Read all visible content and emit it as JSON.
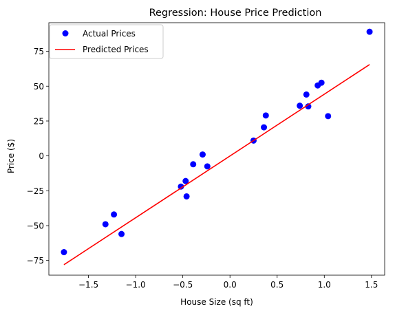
{
  "chart_data": {
    "type": "scatter",
    "title": "Regression: House Price Prediction",
    "xlabel": "House Size (sq ft)",
    "ylabel": "Price ($)",
    "xlim": [
      -1.92,
      1.64
    ],
    "ylim": [
      -85.5,
      95.5
    ],
    "xticks": [
      -1.5,
      -1.0,
      -0.5,
      0.0,
      0.5,
      1.0,
      1.5
    ],
    "xtick_labels": [
      "−1.5",
      "−1.0",
      "−0.5",
      "0.0",
      "0.5",
      "1.0",
      "1.5"
    ],
    "yticks": [
      -75,
      -50,
      -25,
      0,
      25,
      50,
      75
    ],
    "ytick_labels": [
      "−75",
      "−50",
      "−25",
      "0",
      "25",
      "50",
      "75"
    ],
    "grid": false,
    "legend_position": "top-left",
    "series": [
      {
        "name": "Actual Prices",
        "kind": "scatter",
        "color": "#0000ff",
        "points": [
          {
            "x": -1.76,
            "y": -69
          },
          {
            "x": -1.32,
            "y": -49
          },
          {
            "x": -1.23,
            "y": -42
          },
          {
            "x": -1.15,
            "y": -56
          },
          {
            "x": -0.52,
            "y": -22
          },
          {
            "x": -0.47,
            "y": -18
          },
          {
            "x": -0.46,
            "y": -29
          },
          {
            "x": -0.39,
            "y": -6
          },
          {
            "x": -0.29,
            "y": 1
          },
          {
            "x": -0.24,
            "y": -7.5
          },
          {
            "x": 0.25,
            "y": 11
          },
          {
            "x": 0.36,
            "y": 20.5
          },
          {
            "x": 0.38,
            "y": 29
          },
          {
            "x": 0.74,
            "y": 36
          },
          {
            "x": 0.81,
            "y": 44
          },
          {
            "x": 0.83,
            "y": 35.5
          },
          {
            "x": 0.93,
            "y": 50.5
          },
          {
            "x": 0.97,
            "y": 52.5
          },
          {
            "x": 1.04,
            "y": 28.5
          },
          {
            "x": 1.48,
            "y": 89
          }
        ]
      },
      {
        "name": "Predicted Prices",
        "kind": "line",
        "color": "#ff0000",
        "points": [
          {
            "x": -1.76,
            "y": -78
          },
          {
            "x": 1.48,
            "y": 65.5
          }
        ]
      }
    ]
  }
}
